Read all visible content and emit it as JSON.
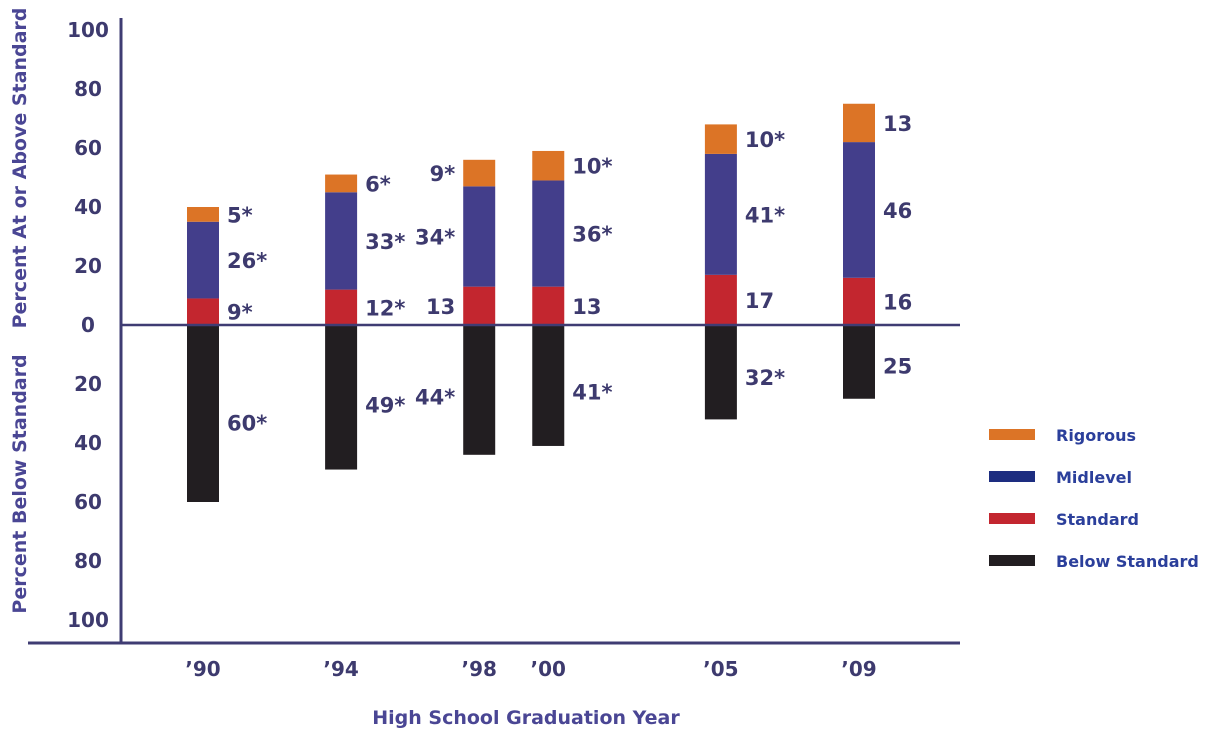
{
  "chart_data": {
    "type": "bar",
    "stacked": true,
    "title": "",
    "xlabel": "High School Graduation Year",
    "ylabel_upper": "Percent At or Above Standard",
    "ylabel_lower": "Percent Below Standard",
    "categories": [
      "’90",
      "’94",
      "’98",
      "’00",
      "’05",
      "’09"
    ],
    "x": [
      1990,
      1994,
      1998,
      2000,
      2005,
      2009
    ],
    "y_ticks_upper": [
      "100",
      "80",
      "60",
      "40",
      "20",
      "0"
    ],
    "y_ticks_lower": [
      "20",
      "40",
      "60",
      "80",
      "100"
    ],
    "ylim": [
      -100,
      100
    ],
    "grid": false,
    "legend_position": "right",
    "series": [
      {
        "name": "Rigorous",
        "color": "#dc7426",
        "direction": "up",
        "values": [
          5,
          6,
          9,
          10,
          10,
          13
        ],
        "labels": [
          "5*",
          "6*",
          "9*",
          "10*",
          "10*",
          "13"
        ]
      },
      {
        "name": "Midlevel",
        "color": "#433e8b",
        "legend_color": "#1d2d80",
        "direction": "up",
        "values": [
          26,
          33,
          34,
          36,
          41,
          46
        ],
        "labels": [
          "26*",
          "33*",
          "34*",
          "36*",
          "41*",
          "46"
        ]
      },
      {
        "name": "Standard",
        "color": "#c3262f",
        "direction": "up",
        "values": [
          9,
          12,
          13,
          13,
          17,
          16
        ],
        "labels": [
          "9*",
          "12*",
          "13",
          "13",
          "17",
          "16"
        ]
      },
      {
        "name": "Below Standard",
        "color": "#221e21",
        "direction": "down",
        "values": [
          60,
          49,
          44,
          41,
          32,
          25
        ],
        "labels": [
          "60*",
          "49*",
          "44*",
          "41*",
          "32*",
          "25"
        ]
      }
    ]
  }
}
